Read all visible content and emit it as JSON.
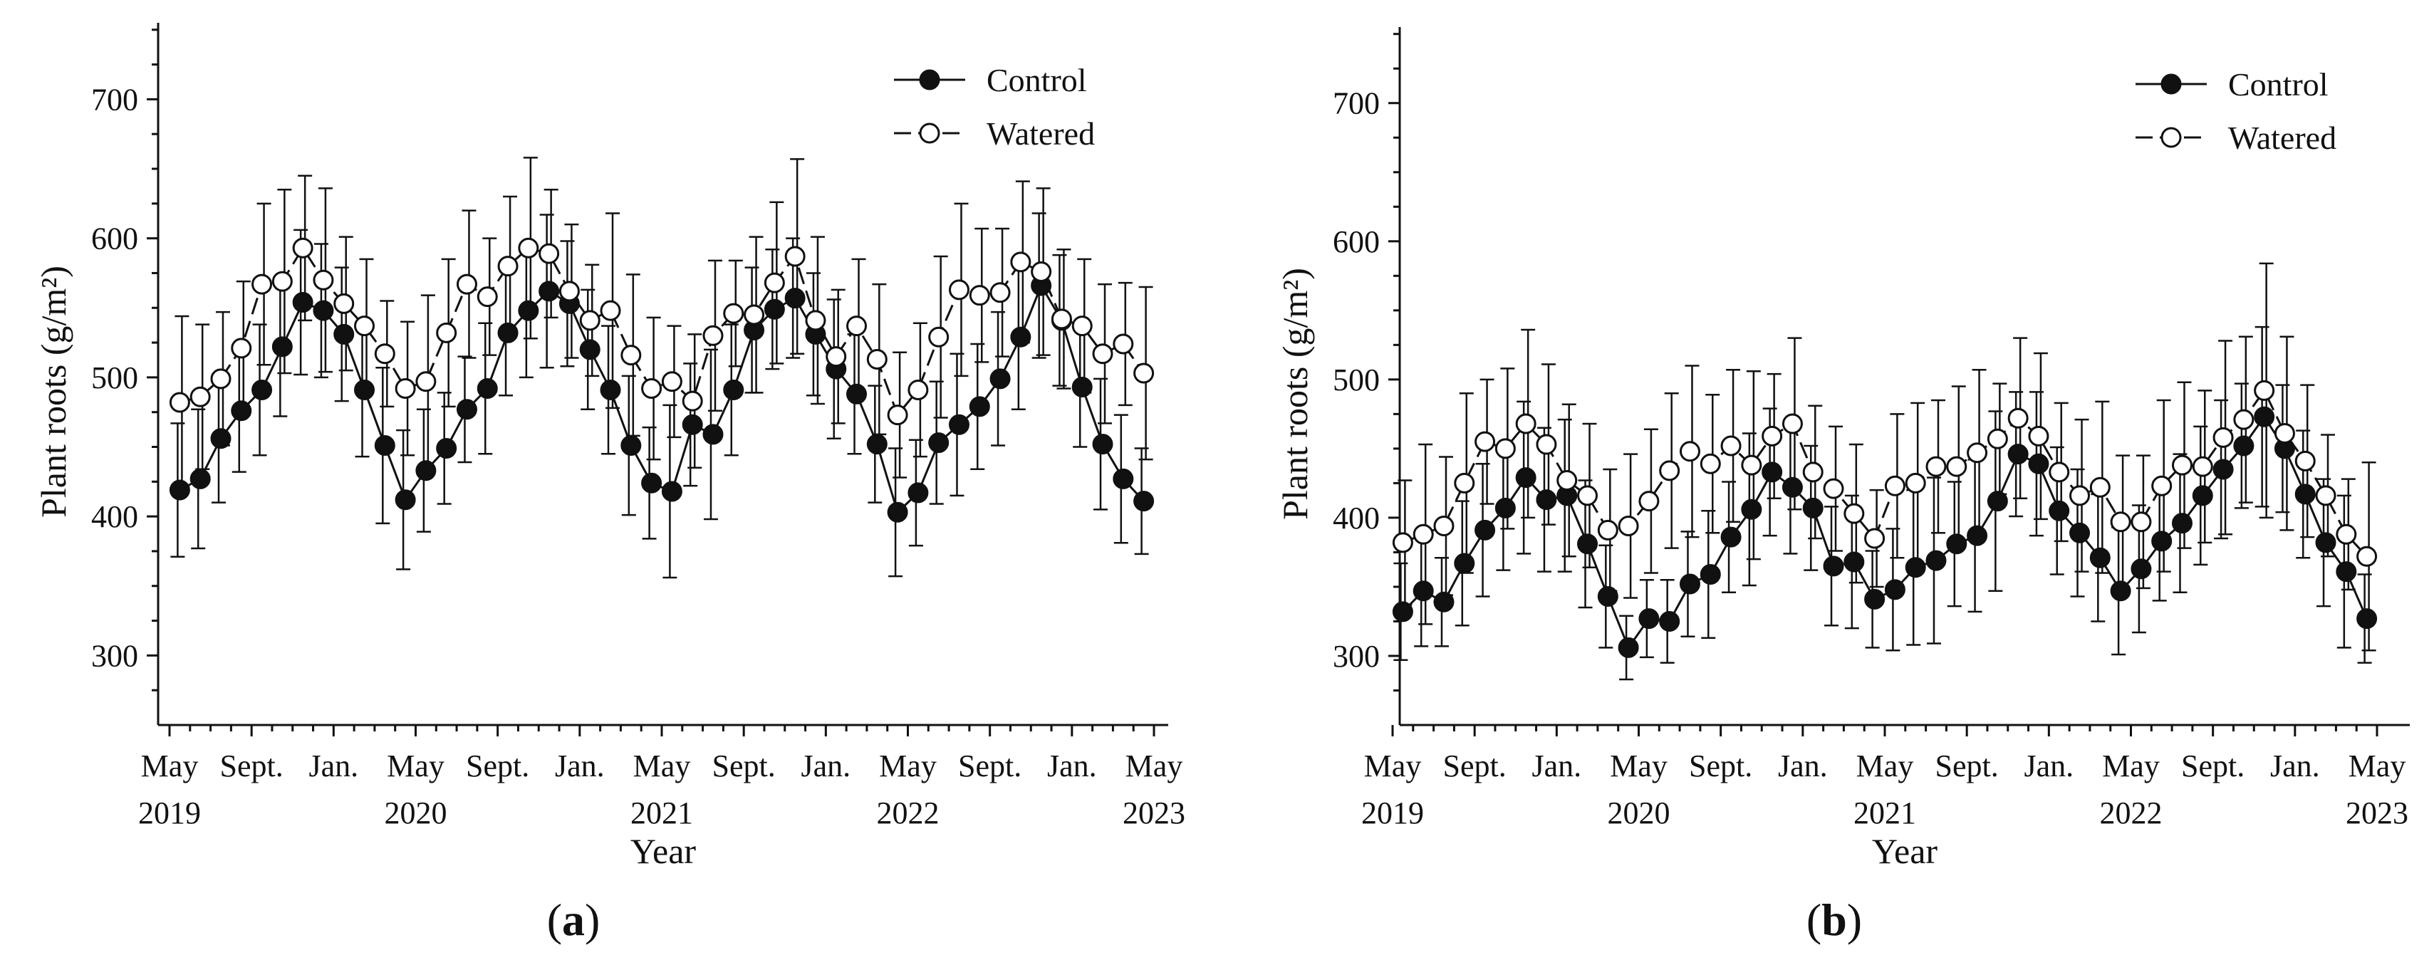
{
  "chart_data": [
    {
      "type": "line",
      "panel": "a",
      "ylabel": "Plant roots (g/m²)",
      "xlabel": "Year",
      "ylim": [
        250,
        755
      ],
      "yticks": [
        300,
        400,
        500,
        600,
        700
      ],
      "x_tick_labels": [
        "May",
        "Sept.",
        "Jan.",
        "May",
        "Sept.",
        "Jan.",
        "May",
        "Sept.",
        "Jan.",
        "May",
        "Sept.",
        "Jan.",
        "May"
      ],
      "year_labels": [
        "2019",
        "2020",
        "2021",
        "2022",
        "2023"
      ],
      "legend": [
        "Control",
        "Watered"
      ],
      "legend_position": "top-right",
      "series": [
        {
          "name": "Control",
          "values": [
            419,
            427,
            456,
            476,
            491,
            522,
            554,
            548,
            531,
            491,
            451,
            412,
            433,
            449,
            477,
            492,
            532,
            548,
            562,
            553,
            520,
            491,
            451,
            424,
            418,
            466,
            459,
            491,
            534,
            549,
            557,
            531,
            506,
            488,
            452,
            403,
            417,
            453,
            466,
            479,
            499,
            529,
            566,
            541,
            493,
            452,
            427,
            411
          ],
          "errors": [
            48,
            50,
            46,
            44,
            47,
            50,
            52,
            48,
            48,
            48,
            56,
            50,
            44,
            40,
            38,
            47,
            45,
            48,
            55,
            45,
            43,
            46,
            50,
            40,
            62,
            44,
            61,
            47,
            45,
            43,
            43,
            44,
            50,
            43,
            42,
            46,
            38,
            44,
            51,
            45,
            48,
            52,
            52,
            47,
            43,
            47,
            46,
            38
          ]
        },
        {
          "name": "Watered",
          "values": [
            482,
            486,
            499,
            521,
            567,
            569,
            593,
            570,
            553,
            537,
            517,
            492,
            497,
            532,
            567,
            558,
            580,
            593,
            589,
            562,
            541,
            548,
            516,
            492,
            497,
            483,
            530,
            546,
            545,
            568,
            587,
            541,
            515,
            537,
            513,
            473,
            491,
            529,
            563,
            559,
            561,
            583,
            576,
            542,
            537,
            517,
            524,
            503
          ],
          "errors": [
            62,
            52,
            48,
            48,
            58,
            66,
            52,
            66,
            48,
            48,
            38,
            48,
            62,
            53,
            53,
            42,
            50,
            65,
            46,
            48,
            40,
            70,
            58,
            51,
            40,
            48,
            54,
            38,
            56,
            58,
            70,
            60,
            48,
            48,
            54,
            45,
            48,
            58,
            62,
            48,
            46,
            58,
            60,
            50,
            48,
            50,
            44,
            62
          ]
        }
      ]
    },
    {
      "type": "line",
      "panel": "b",
      "ylabel": "Plant roots (g/m²)",
      "xlabel": "Year",
      "ylim": [
        250,
        755
      ],
      "yticks": [
        300,
        400,
        500,
        600,
        700
      ],
      "x_tick_labels": [
        "May",
        "Sept.",
        "Jan.",
        "May",
        "Sept.",
        "Jan.",
        "May",
        "Sept.",
        "Jan.",
        "May",
        "Sept.",
        "Jan.",
        "May"
      ],
      "year_labels": [
        "2019",
        "2020",
        "2021",
        "2022",
        "2023"
      ],
      "legend": [
        "Control",
        "Watered"
      ],
      "legend_position": "top-right",
      "series": [
        {
          "name": "Control",
          "values": [
            332,
            347,
            339,
            367,
            391,
            407,
            429,
            413,
            416,
            381,
            343,
            306,
            327,
            325,
            352,
            359,
            386,
            406,
            433,
            422,
            407,
            365,
            368,
            341,
            348,
            364,
            369,
            381,
            387,
            412,
            446,
            439,
            405,
            389,
            371,
            347,
            363,
            383,
            396,
            416,
            435,
            452,
            473,
            450,
            417,
            382,
            361,
            327
          ],
          "errors": [
            35,
            40,
            32,
            45,
            48,
            45,
            55,
            52,
            55,
            46,
            37,
            23,
            28,
            30,
            38,
            46,
            40,
            55,
            46,
            48,
            45,
            43,
            48,
            35,
            44,
            56,
            60,
            45,
            55,
            65,
            45,
            52,
            46,
            46,
            46,
            46,
            46,
            43,
            50,
            50,
            50,
            45,
            65,
            46,
            46,
            46,
            55,
            32
          ]
        },
        {
          "name": "Watered",
          "values": [
            382,
            388,
            394,
            425,
            455,
            450,
            468,
            453,
            427,
            416,
            391,
            394,
            412,
            434,
            448,
            439,
            452,
            438,
            459,
            468,
            433,
            421,
            403,
            385,
            423,
            425,
            437,
            437,
            447,
            457,
            472,
            459,
            433,
            416,
            422,
            397,
            397,
            423,
            438,
            437,
            458,
            471,
            492,
            461,
            441,
            416,
            388,
            372
          ],
          "errors": [
            45,
            65,
            50,
            65,
            45,
            58,
            68,
            58,
            55,
            52,
            44,
            52,
            52,
            56,
            62,
            50,
            55,
            68,
            45,
            62,
            48,
            45,
            50,
            35,
            52,
            58,
            48,
            58,
            60,
            40,
            58,
            60,
            50,
            55,
            62,
            48,
            48,
            62,
            60,
            55,
            70,
            60,
            92,
            70,
            55,
            44,
            40,
            68
          ]
        }
      ]
    }
  ],
  "captions": {
    "a_label": "a",
    "b_label": "b"
  }
}
